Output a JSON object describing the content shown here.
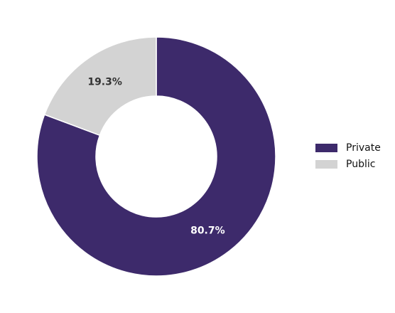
{
  "chart_data": {
    "type": "donut",
    "categories": [
      "Private",
      "Public"
    ],
    "values": [
      80.7,
      19.3
    ],
    "value_labels": [
      "80.7%",
      "19.3%"
    ],
    "colors": [
      "#3d2a6b",
      "#d3d3d3"
    ],
    "legend": "right"
  }
}
